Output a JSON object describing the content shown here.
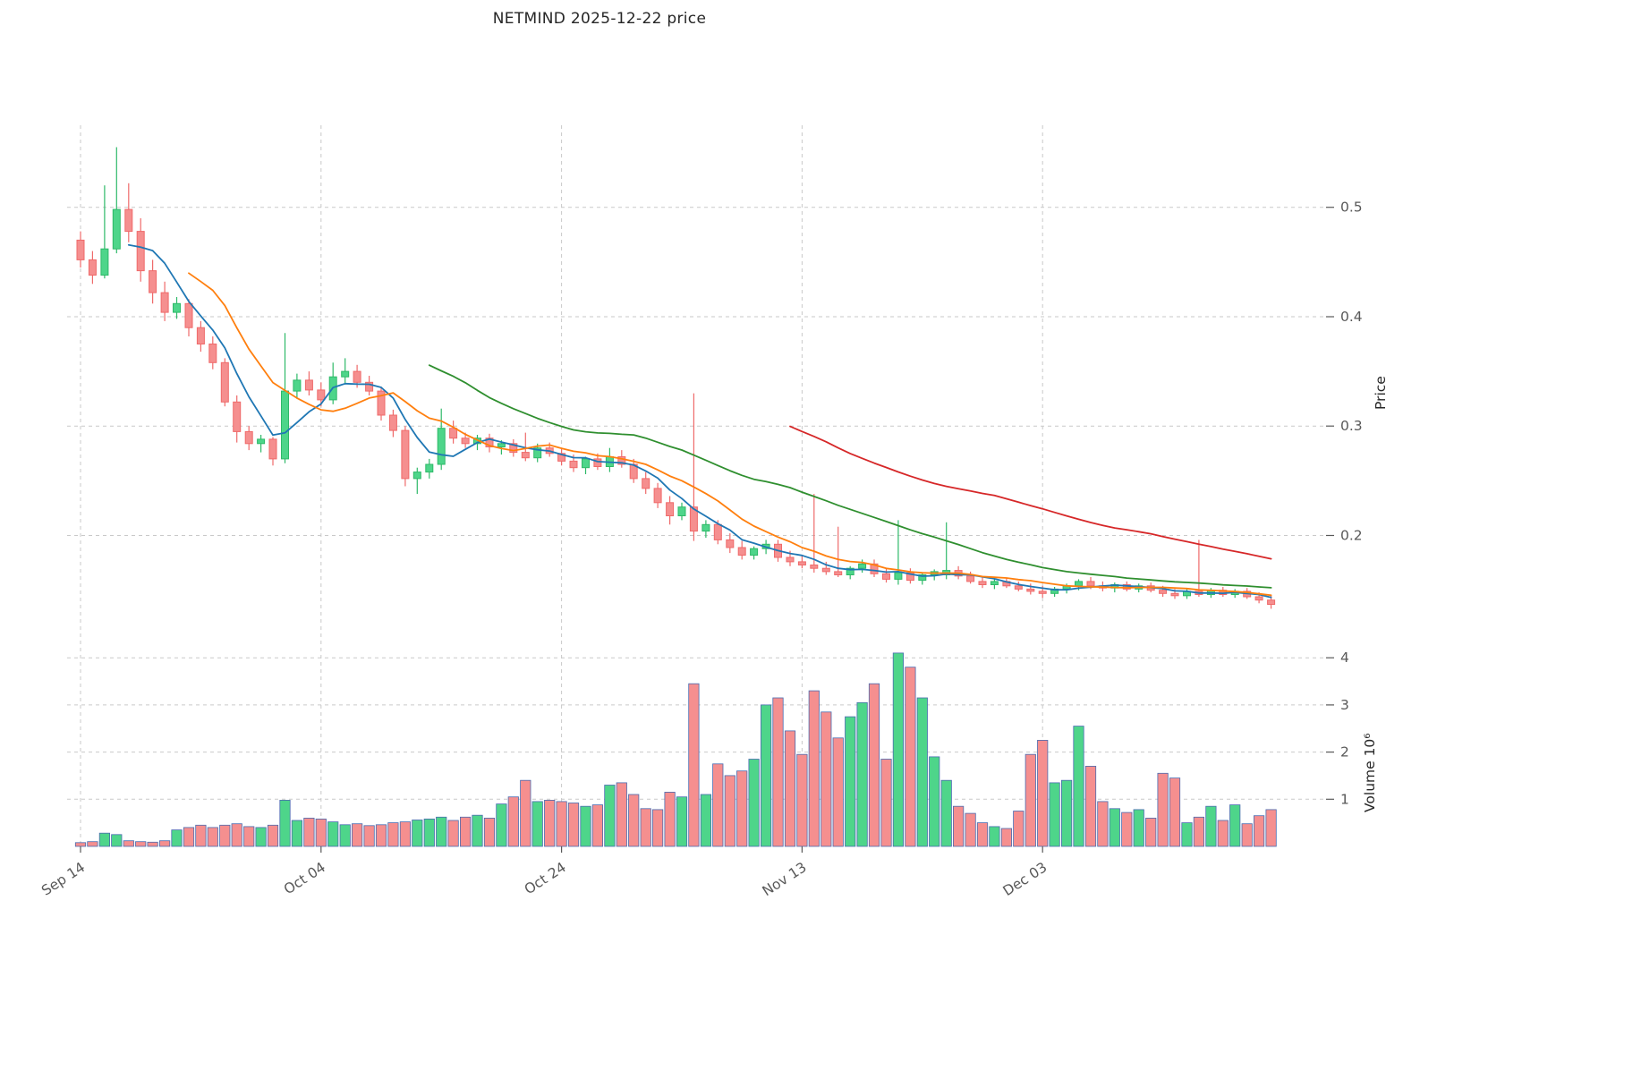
{
  "chart_data": {
    "type": "candlestick",
    "title": "NETMIND  2025-12-22  price",
    "x_axis": {
      "tick_labels": [
        "Sep 14",
        "Oct 04",
        "Oct 24",
        "Nov 13",
        "Dec 03"
      ],
      "tick_indices": [
        0,
        20,
        40,
        60,
        80
      ]
    },
    "price_axis": {
      "label": "Price",
      "tick_labels": [
        "0.2",
        "0.3",
        "0.4",
        "0.5"
      ],
      "tick_values": [
        0.2,
        0.3,
        0.4,
        0.5
      ],
      "range": [
        0.117,
        0.575
      ]
    },
    "volume_axis": {
      "label": "Volume",
      "label_display": "Volume  10⁶",
      "tick_labels": [
        "1",
        "2",
        "3",
        "4"
      ],
      "tick_values": [
        1,
        2,
        3,
        4
      ],
      "range": [
        0,
        4.44
      ]
    },
    "moving_averages": [
      {
        "period": 5,
        "color": "#1f77b4"
      },
      {
        "period": 10,
        "color": "#ff7f0e"
      },
      {
        "period": 30,
        "color": "#2f8f2f"
      },
      {
        "period": 60,
        "color": "#d62728"
      }
    ],
    "colors": {
      "up_fill": "#4ed58a",
      "up_edge": "#2eb968",
      "down_fill": "#f58f8f",
      "down_edge": "#ef6a6a",
      "volume_edge": "#4a6bb0",
      "grid": "#c9c9c9",
      "tick_text": "#595959",
      "title_text": "#262626"
    },
    "ohlcv": [
      [
        0.47,
        0.478,
        0.445,
        0.452,
        0.08
      ],
      [
        0.452,
        0.46,
        0.43,
        0.438,
        0.1
      ],
      [
        0.438,
        0.52,
        0.435,
        0.462,
        0.28
      ],
      [
        0.462,
        0.555,
        0.458,
        0.498,
        0.25
      ],
      [
        0.498,
        0.522,
        0.468,
        0.478,
        0.12
      ],
      [
        0.478,
        0.49,
        0.432,
        0.442,
        0.1
      ],
      [
        0.442,
        0.452,
        0.412,
        0.422,
        0.09
      ],
      [
        0.422,
        0.432,
        0.396,
        0.404,
        0.12
      ],
      [
        0.404,
        0.418,
        0.398,
        0.412,
        0.35
      ],
      [
        0.412,
        0.416,
        0.382,
        0.39,
        0.4
      ],
      [
        0.39,
        0.396,
        0.368,
        0.375,
        0.45
      ],
      [
        0.375,
        0.382,
        0.352,
        0.358,
        0.4
      ],
      [
        0.358,
        0.362,
        0.318,
        0.322,
        0.45
      ],
      [
        0.322,
        0.328,
        0.285,
        0.295,
        0.48
      ],
      [
        0.295,
        0.3,
        0.278,
        0.284,
        0.42
      ],
      [
        0.284,
        0.292,
        0.276,
        0.288,
        0.4
      ],
      [
        0.288,
        0.29,
        0.264,
        0.27,
        0.45
      ],
      [
        0.27,
        0.385,
        0.266,
        0.332,
        0.98
      ],
      [
        0.332,
        0.348,
        0.325,
        0.342,
        0.55
      ],
      [
        0.342,
        0.35,
        0.328,
        0.333,
        0.6
      ],
      [
        0.333,
        0.34,
        0.318,
        0.324,
        0.58
      ],
      [
        0.324,
        0.358,
        0.32,
        0.345,
        0.52
      ],
      [
        0.345,
        0.362,
        0.338,
        0.35,
        0.46
      ],
      [
        0.35,
        0.356,
        0.335,
        0.34,
        0.48
      ],
      [
        0.34,
        0.346,
        0.328,
        0.332,
        0.44
      ],
      [
        0.332,
        0.336,
        0.305,
        0.31,
        0.46
      ],
      [
        0.31,
        0.315,
        0.29,
        0.296,
        0.5
      ],
      [
        0.296,
        0.3,
        0.245,
        0.252,
        0.52
      ],
      [
        0.252,
        0.262,
        0.238,
        0.258,
        0.56
      ],
      [
        0.258,
        0.27,
        0.252,
        0.265,
        0.58
      ],
      [
        0.265,
        0.316,
        0.26,
        0.298,
        0.62
      ],
      [
        0.298,
        0.305,
        0.284,
        0.289,
        0.55
      ],
      [
        0.289,
        0.294,
        0.28,
        0.284,
        0.62
      ],
      [
        0.284,
        0.292,
        0.278,
        0.289,
        0.66
      ],
      [
        0.289,
        0.293,
        0.276,
        0.281,
        0.6
      ],
      [
        0.281,
        0.287,
        0.274,
        0.284,
        0.9
      ],
      [
        0.284,
        0.288,
        0.272,
        0.276,
        1.05
      ],
      [
        0.276,
        0.294,
        0.268,
        0.271,
        1.4
      ],
      [
        0.271,
        0.284,
        0.267,
        0.28,
        0.95
      ],
      [
        0.28,
        0.285,
        0.272,
        0.275,
        0.98
      ],
      [
        0.275,
        0.28,
        0.264,
        0.268,
        0.95
      ],
      [
        0.268,
        0.274,
        0.258,
        0.262,
        0.92
      ],
      [
        0.262,
        0.272,
        0.256,
        0.27,
        0.85
      ],
      [
        0.27,
        0.275,
        0.26,
        0.263,
        0.88
      ],
      [
        0.263,
        0.28,
        0.258,
        0.272,
        1.3
      ],
      [
        0.272,
        0.278,
        0.262,
        0.265,
        1.35
      ],
      [
        0.265,
        0.27,
        0.248,
        0.252,
        1.1
      ],
      [
        0.252,
        0.258,
        0.238,
        0.243,
        0.8
      ],
      [
        0.243,
        0.248,
        0.225,
        0.23,
        0.78
      ],
      [
        0.23,
        0.236,
        0.21,
        0.218,
        1.15
      ],
      [
        0.218,
        0.23,
        0.214,
        0.226,
        1.05
      ],
      [
        0.226,
        0.33,
        0.195,
        0.204,
        3.45
      ],
      [
        0.204,
        0.214,
        0.198,
        0.21,
        1.1
      ],
      [
        0.21,
        0.214,
        0.192,
        0.196,
        1.75
      ],
      [
        0.196,
        0.202,
        0.184,
        0.189,
        1.5
      ],
      [
        0.189,
        0.195,
        0.178,
        0.182,
        1.6
      ],
      [
        0.182,
        0.19,
        0.178,
        0.188,
        1.85
      ],
      [
        0.188,
        0.196,
        0.183,
        0.192,
        3.0
      ],
      [
        0.192,
        0.196,
        0.176,
        0.18,
        3.15
      ],
      [
        0.18,
        0.186,
        0.172,
        0.176,
        2.45
      ],
      [
        0.176,
        0.182,
        0.17,
        0.173,
        1.95
      ],
      [
        0.173,
        0.238,
        0.166,
        0.17,
        3.3
      ],
      [
        0.17,
        0.176,
        0.164,
        0.167,
        2.85
      ],
      [
        0.167,
        0.208,
        0.162,
        0.164,
        2.3
      ],
      [
        0.164,
        0.172,
        0.16,
        0.17,
        2.75
      ],
      [
        0.17,
        0.178,
        0.166,
        0.174,
        3.05
      ],
      [
        0.174,
        0.178,
        0.162,
        0.165,
        3.45
      ],
      [
        0.165,
        0.17,
        0.157,
        0.16,
        1.85
      ],
      [
        0.16,
        0.214,
        0.155,
        0.166,
        4.1
      ],
      [
        0.166,
        0.17,
        0.156,
        0.159,
        3.8
      ],
      [
        0.159,
        0.166,
        0.155,
        0.164,
        3.15
      ],
      [
        0.164,
        0.169,
        0.159,
        0.167,
        1.9
      ],
      [
        0.164,
        0.212,
        0.16,
        0.168,
        1.4
      ],
      [
        0.168,
        0.172,
        0.16,
        0.163,
        0.85
      ],
      [
        0.163,
        0.167,
        0.156,
        0.158,
        0.7
      ],
      [
        0.158,
        0.162,
        0.152,
        0.155,
        0.5
      ],
      [
        0.155,
        0.16,
        0.151,
        0.158,
        0.42
      ],
      [
        0.158,
        0.161,
        0.152,
        0.154,
        0.38
      ],
      [
        0.154,
        0.158,
        0.149,
        0.151,
        0.75
      ],
      [
        0.151,
        0.156,
        0.146,
        0.149,
        1.95
      ],
      [
        0.149,
        0.154,
        0.143,
        0.147,
        2.25
      ],
      [
        0.147,
        0.153,
        0.144,
        0.151,
        1.35
      ],
      [
        0.151,
        0.156,
        0.147,
        0.154,
        1.4
      ],
      [
        0.154,
        0.16,
        0.15,
        0.158,
        2.55
      ],
      [
        0.158,
        0.162,
        0.151,
        0.154,
        1.7
      ],
      [
        0.154,
        0.158,
        0.149,
        0.152,
        0.95
      ],
      [
        0.152,
        0.157,
        0.148,
        0.155,
        0.8
      ],
      [
        0.155,
        0.158,
        0.149,
        0.151,
        0.72
      ],
      [
        0.151,
        0.156,
        0.148,
        0.154,
        0.78
      ],
      [
        0.154,
        0.157,
        0.148,
        0.15,
        0.6
      ],
      [
        0.15,
        0.154,
        0.144,
        0.147,
        1.55
      ],
      [
        0.147,
        0.151,
        0.142,
        0.145,
        1.45
      ],
      [
        0.145,
        0.151,
        0.142,
        0.149,
        0.5
      ],
      [
        0.149,
        0.196,
        0.144,
        0.146,
        0.62
      ],
      [
        0.146,
        0.152,
        0.143,
        0.15,
        0.85
      ],
      [
        0.15,
        0.153,
        0.144,
        0.146,
        0.55
      ],
      [
        0.146,
        0.151,
        0.143,
        0.149,
        0.88
      ],
      [
        0.149,
        0.152,
        0.142,
        0.144,
        0.48
      ],
      [
        0.144,
        0.148,
        0.138,
        0.141,
        0.65
      ],
      [
        0.141,
        0.145,
        0.133,
        0.137,
        0.78
      ]
    ]
  }
}
